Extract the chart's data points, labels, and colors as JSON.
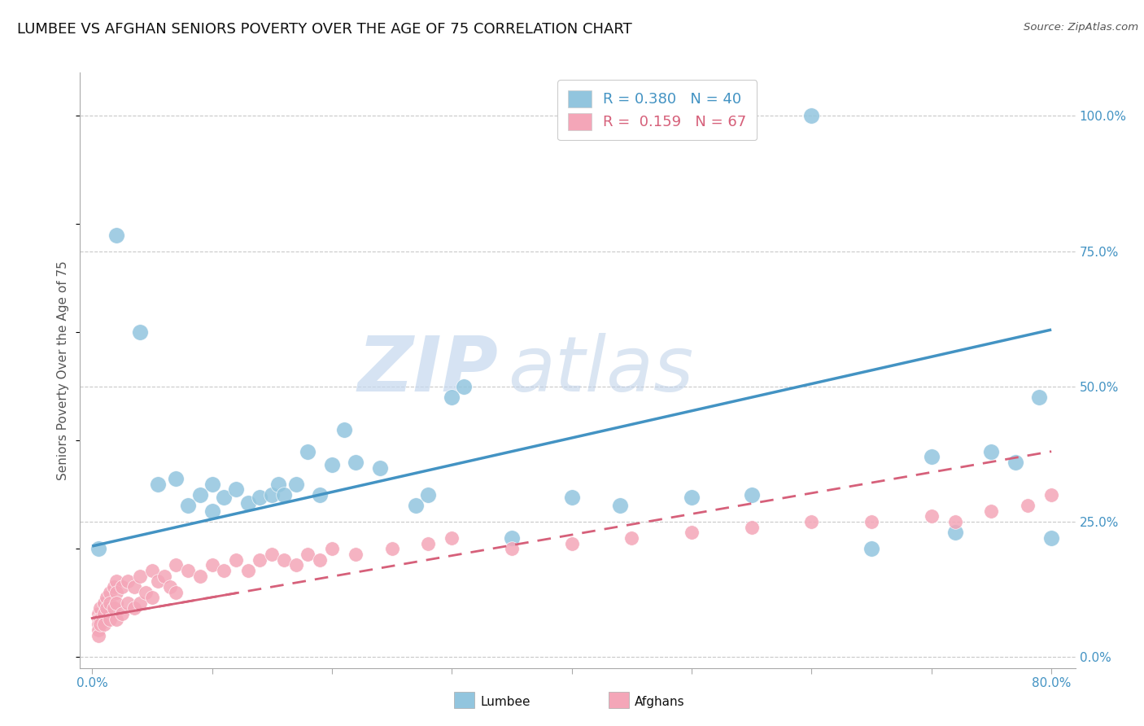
{
  "title": "LUMBEE VS AFGHAN SENIORS POVERTY OVER THE AGE OF 75 CORRELATION CHART",
  "source_text": "Source: ZipAtlas.com",
  "ylabel": "Seniors Poverty Over the Age of 75",
  "xlim": [
    -0.01,
    0.82
  ],
  "ylim": [
    -0.02,
    1.08
  ],
  "ytick_positions": [
    0.0,
    0.25,
    0.5,
    0.75,
    1.0
  ],
  "yticklabels_right": [
    "0.0%",
    "25.0%",
    "50.0%",
    "75.0%",
    "100.0%"
  ],
  "lumbee_R": 0.38,
  "lumbee_N": 40,
  "afghan_R": 0.159,
  "afghan_N": 67,
  "lumbee_color": "#92c5de",
  "afghan_color": "#f4a6b8",
  "lumbee_line_color": "#4393c3",
  "afghan_line_color": "#d6607a",
  "background_color": "#ffffff",
  "grid_color": "#bbbbbb",
  "watermark_zip": "ZIP",
  "watermark_atlas": "atlas",
  "lumbee_x": [
    0.005,
    0.02,
    0.04,
    0.055,
    0.07,
    0.08,
    0.09,
    0.1,
    0.1,
    0.11,
    0.12,
    0.13,
    0.14,
    0.15,
    0.155,
    0.16,
    0.17,
    0.18,
    0.19,
    0.2,
    0.21,
    0.22,
    0.24,
    0.27,
    0.28,
    0.3,
    0.31,
    0.35,
    0.4,
    0.44,
    0.5,
    0.55,
    0.6,
    0.65,
    0.7,
    0.72,
    0.75,
    0.77,
    0.79,
    0.8
  ],
  "lumbee_y": [
    0.2,
    0.78,
    0.6,
    0.32,
    0.33,
    0.28,
    0.3,
    0.27,
    0.32,
    0.295,
    0.31,
    0.285,
    0.295,
    0.3,
    0.32,
    0.3,
    0.32,
    0.38,
    0.3,
    0.355,
    0.42,
    0.36,
    0.35,
    0.28,
    0.3,
    0.48,
    0.5,
    0.22,
    0.295,
    0.28,
    0.295,
    0.3,
    1.0,
    0.2,
    0.37,
    0.23,
    0.38,
    0.36,
    0.48,
    0.22
  ],
  "afghan_x": [
    0.005,
    0.005,
    0.005,
    0.005,
    0.005,
    0.007,
    0.007,
    0.007,
    0.01,
    0.01,
    0.01,
    0.012,
    0.012,
    0.015,
    0.015,
    0.015,
    0.018,
    0.018,
    0.02,
    0.02,
    0.02,
    0.02,
    0.025,
    0.025,
    0.03,
    0.03,
    0.035,
    0.035,
    0.04,
    0.04,
    0.045,
    0.05,
    0.05,
    0.055,
    0.06,
    0.065,
    0.07,
    0.07,
    0.08,
    0.09,
    0.1,
    0.11,
    0.12,
    0.13,
    0.14,
    0.15,
    0.16,
    0.17,
    0.18,
    0.19,
    0.2,
    0.22,
    0.25,
    0.28,
    0.3,
    0.35,
    0.4,
    0.45,
    0.5,
    0.55,
    0.6,
    0.65,
    0.7,
    0.72,
    0.75,
    0.78,
    0.8
  ],
  "afghan_y": [
    0.08,
    0.07,
    0.06,
    0.05,
    0.04,
    0.09,
    0.07,
    0.06,
    0.1,
    0.08,
    0.06,
    0.11,
    0.09,
    0.12,
    0.1,
    0.07,
    0.13,
    0.09,
    0.14,
    0.12,
    0.1,
    0.07,
    0.13,
    0.08,
    0.14,
    0.1,
    0.13,
    0.09,
    0.15,
    0.1,
    0.12,
    0.16,
    0.11,
    0.14,
    0.15,
    0.13,
    0.17,
    0.12,
    0.16,
    0.15,
    0.17,
    0.16,
    0.18,
    0.16,
    0.18,
    0.19,
    0.18,
    0.17,
    0.19,
    0.18,
    0.2,
    0.19,
    0.2,
    0.21,
    0.22,
    0.2,
    0.21,
    0.22,
    0.23,
    0.24,
    0.25,
    0.25,
    0.26,
    0.25,
    0.27,
    0.28,
    0.3
  ],
  "title_fontsize": 13,
  "axis_label_fontsize": 11,
  "tick_fontsize": 11,
  "legend_fontsize": 13
}
